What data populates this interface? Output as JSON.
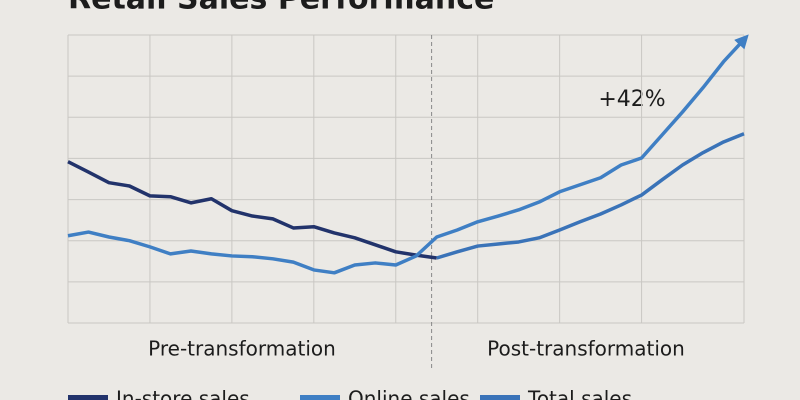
{
  "chart_data": {
    "type": "line",
    "title": "Retail Sales Performance",
    "x": [
      0,
      1,
      2,
      3,
      4,
      5,
      6,
      7,
      8,
      9,
      10,
      11,
      12,
      13,
      14,
      15,
      16,
      17,
      18,
      19,
      20,
      21,
      22,
      23,
      24,
      25,
      26,
      27,
      28,
      29,
      30,
      31,
      32,
      33
    ],
    "series": [
      {
        "name": "In-store sales",
        "color": "#22336b",
        "values": [
          3.92,
          3.67,
          3.41,
          3.33,
          3.09,
          3.07,
          2.92,
          3.02,
          2.73,
          2.6,
          2.53,
          2.31,
          2.34,
          2.19,
          2.07,
          1.9,
          1.73,
          1.65,
          1.58,
          null,
          null,
          null,
          null,
          null,
          null,
          null,
          null,
          null,
          null,
          null,
          null,
          null,
          null,
          null
        ]
      },
      {
        "name": "Online sales",
        "color": "#3f7fc4",
        "values": [
          2.12,
          2.21,
          2.09,
          2.0,
          1.85,
          1.68,
          1.75,
          1.68,
          1.63,
          1.61,
          1.56,
          1.48,
          1.29,
          1.22,
          1.41,
          1.46,
          1.41,
          1.63,
          2.09,
          2.26,
          2.46,
          2.6,
          2.75,
          2.94,
          3.19,
          3.36,
          3.53,
          3.84,
          4.01,
          4.57,
          5.13,
          5.72,
          6.35,
          6.89
        ]
      },
      {
        "name": "Total sales",
        "color": "#3a73b8",
        "values": [
          null,
          null,
          null,
          null,
          null,
          null,
          null,
          null,
          null,
          null,
          null,
          null,
          null,
          null,
          null,
          null,
          null,
          null,
          1.58,
          1.73,
          1.87,
          1.92,
          1.97,
          2.07,
          2.26,
          2.46,
          2.65,
          2.87,
          3.11,
          3.48,
          3.84,
          4.14,
          4.4,
          4.6
        ]
      }
    ],
    "xlim": [
      0,
      33
    ],
    "xticks": [
      0,
      4,
      8,
      12,
      16,
      20,
      24,
      28,
      33
    ],
    "ylim": [
      0,
      7
    ],
    "yticks": [
      0,
      1,
      2,
      3,
      4,
      5,
      6,
      7
    ],
    "grid": true,
    "divider_x": 17.75,
    "regions": [
      "Pre-transformation",
      "Post-transformation"
    ],
    "annotation": "+42%"
  }
}
